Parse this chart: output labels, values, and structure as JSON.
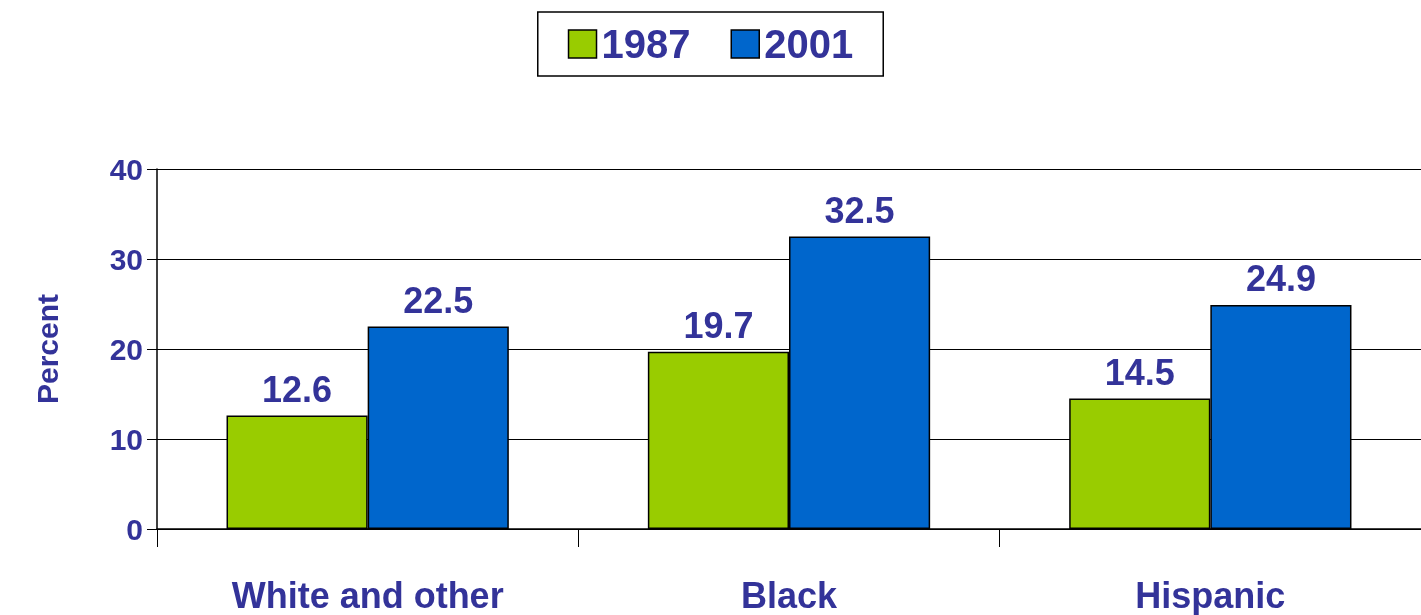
{
  "chart_data": {
    "type": "bar",
    "ylabel": "Percent",
    "categories": [
      "White and other",
      "Black",
      "Hispanic"
    ],
    "series": [
      {
        "name": "1987",
        "color": "#99cc00",
        "values": [
          12.6,
          19.7,
          14.5
        ]
      },
      {
        "name": "2001",
        "color": "#0066cc",
        "values": [
          22.5,
          32.5,
          24.9
        ]
      }
    ],
    "ylim": [
      0,
      40
    ],
    "yticks": [
      0,
      10,
      20,
      30,
      40
    ],
    "grid": "y",
    "legend": "top",
    "data_labels": true
  }
}
